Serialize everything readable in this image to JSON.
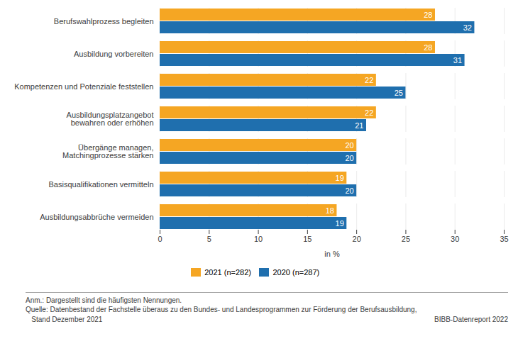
{
  "chart_data": {
    "type": "bar",
    "orientation": "horizontal",
    "categories": [
      "Berufswahlprozess begleiten",
      "Ausbildung vorbereiten",
      "Kompetenzen und Potenziale feststellen",
      "Ausbildungsplatzangebot\nbewahren oder erhöhen",
      "Übergänge managen,\nMatchingprozesse stärken",
      "Basisqualifikationen vermitteln",
      "Ausbildungsabbrüche vermeiden"
    ],
    "series": [
      {
        "name": "2021 (n=282)",
        "color": "#F5A623",
        "values": [
          28,
          28,
          22,
          22,
          20,
          19,
          18
        ]
      },
      {
        "name": "2020 (n=287)",
        "color": "#1F6FAE",
        "values": [
          32,
          31,
          25,
          21,
          20,
          20,
          19
        ]
      }
    ],
    "xlabel": "in %",
    "xlim": [
      0,
      35
    ],
    "xticks": [
      0,
      5,
      10,
      15,
      20,
      25,
      30,
      35
    ],
    "grid": true,
    "data_labels": true,
    "legend": "bottom",
    "annotations": [
      "Anm.: Dargestellt sind die häufigsten Nennungen.",
      "Quelle: Datenbestand der Fachstelle überaus zu den Bundes- und Landesprogrammen zur Förderung der Berufsausbildung,",
      "   Stand Dezember 2021",
      "BIBB-Datenreport 2022"
    ]
  }
}
